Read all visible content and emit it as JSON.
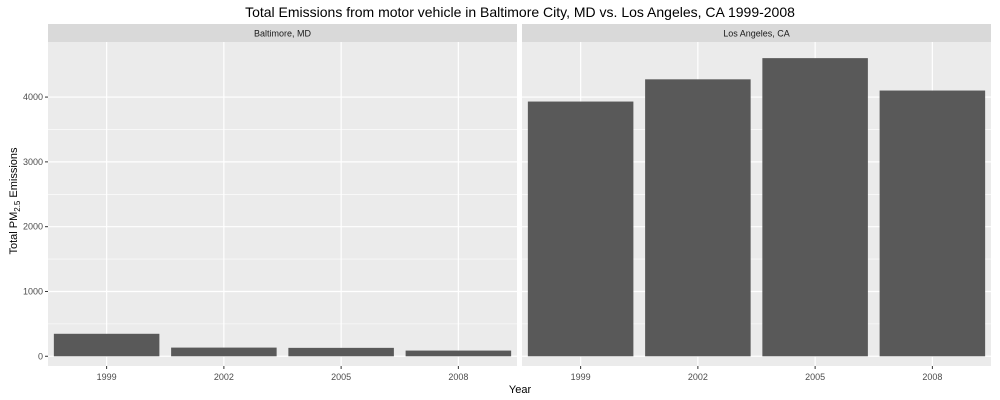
{
  "chart_data": {
    "type": "bar",
    "title": "Total Emissions from motor vehicle in Baltimore City, MD vs. Los Angeles, CA 1999-2008",
    "xlabel": "Year",
    "ylabel": "Total PM",
    "ylabel_sub": "2.5",
    "ylabel_suffix": " Emissions",
    "categories": [
      "1999",
      "2002",
      "2005",
      "2008"
    ],
    "yticks": [
      0,
      1000,
      2000,
      3000,
      4000
    ],
    "ylim": [
      -150,
      4850
    ],
    "grid": true,
    "colors": {
      "bar": "#595959",
      "panel": "#ebebeb",
      "strip": "#d9d9d9",
      "grid": "#ffffff"
    },
    "panels": [
      {
        "name": "Baltimore, MD",
        "values": [
          347,
          134,
          130,
          88
        ]
      },
      {
        "name": "Los Angeles, CA",
        "values": [
          3931,
          4274,
          4601,
          4101
        ]
      }
    ]
  }
}
